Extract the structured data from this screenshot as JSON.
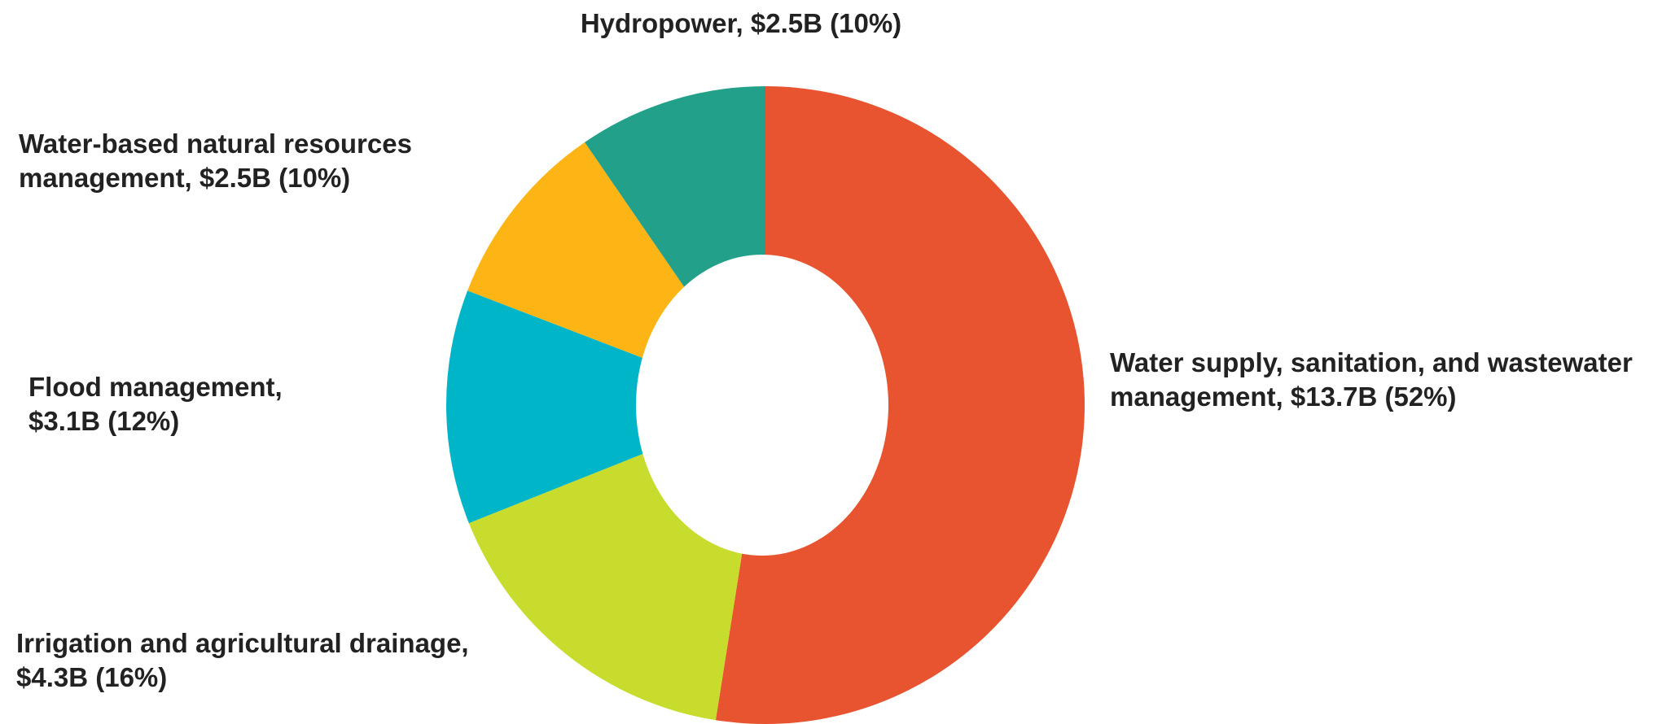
{
  "chart_data": {
    "type": "donut",
    "categories": [
      "Water supply, sanitation, and wastewater management,",
      "Irrigation and agricultural drainage,",
      "Flood management,",
      "Water-based natural resources management,",
      "Hydropower,"
    ],
    "values": [
      13.7,
      4.3,
      3.1,
      2.5,
      2.5
    ],
    "value_labels": [
      "$13.7B (52%)",
      "$4.3B (16%)",
      "$3.1B (12%)",
      "$2.5B (10%)",
      "$2.5B (10%)"
    ],
    "colors": [
      "#e8542f",
      "#c8dc2e",
      "#00b5c8",
      "#fdb515",
      "#23a08a"
    ]
  }
}
